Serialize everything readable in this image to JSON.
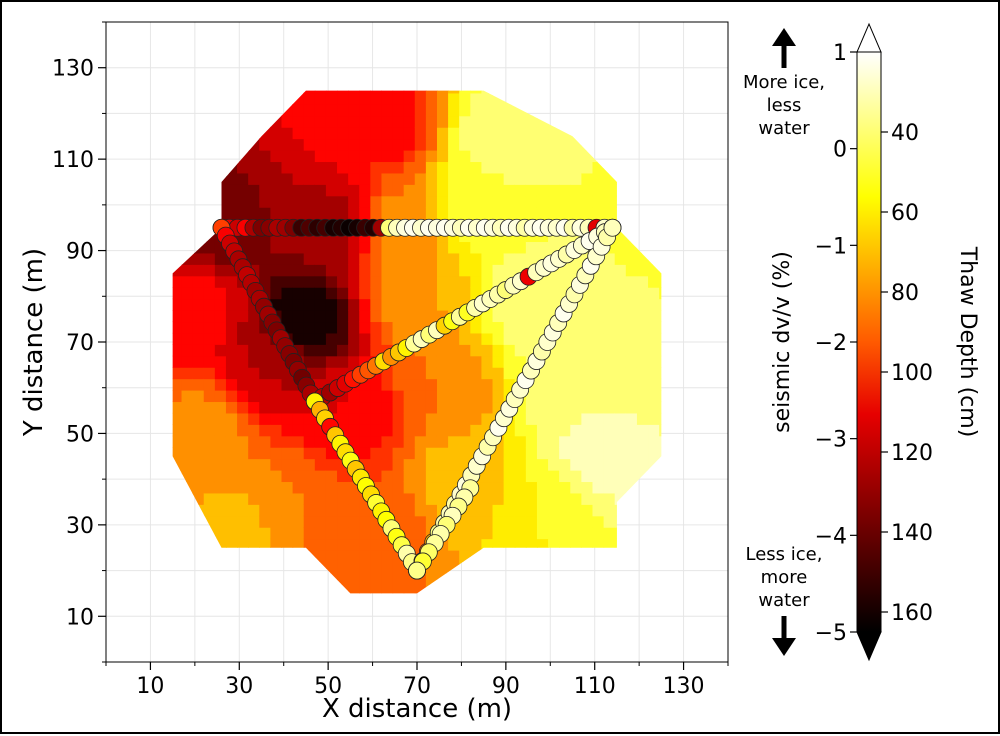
{
  "chart_data": {
    "type": "scatter",
    "title": "",
    "xlabel": "X distance (m)",
    "ylabel": "Y distance (m)",
    "xlim": [
      0,
      140
    ],
    "ylim": [
      0,
      140
    ],
    "xticks": [
      "10",
      "30",
      "50",
      "70",
      "90",
      "110",
      "130"
    ],
    "yticks": [
      "10",
      "30",
      "50",
      "70",
      "90",
      "110",
      "130"
    ],
    "grid": true,
    "background_contour": {
      "quantity": "Thaw Depth (cm)",
      "colormap": "hot",
      "hull": [
        [
          26,
          105
        ],
        [
          35,
          115
        ],
        [
          45,
          125
        ],
        [
          85,
          125
        ],
        [
          105,
          115
        ],
        [
          115,
          105
        ],
        [
          115,
          95
        ],
        [
          125,
          85
        ],
        [
          125,
          45
        ],
        [
          115,
          35
        ],
        [
          115,
          25
        ],
        [
          85,
          25
        ],
        [
          70,
          15
        ],
        [
          55,
          15
        ],
        [
          45,
          25
        ],
        [
          26,
          25
        ],
        [
          15,
          45
        ],
        [
          15,
          85
        ],
        [
          26,
          95
        ]
      ],
      "centers": [
        {
          "x": 45,
          "y": 75,
          "thaw": 165
        },
        {
          "x": 25,
          "y": 95,
          "thaw": 140
        },
        {
          "x": 52,
          "y": 95,
          "thaw": 130
        },
        {
          "x": 38,
          "y": 65,
          "thaw": 125
        },
        {
          "x": 62,
          "y": 118,
          "thaw": 110
        },
        {
          "x": 20,
          "y": 78,
          "thaw": 110
        },
        {
          "x": 55,
          "y": 55,
          "thaw": 115
        },
        {
          "x": 60,
          "y": 30,
          "thaw": 95
        },
        {
          "x": 75,
          "y": 60,
          "thaw": 85
        },
        {
          "x": 22,
          "y": 50,
          "thaw": 80
        },
        {
          "x": 80,
          "y": 40,
          "thaw": 70
        },
        {
          "x": 85,
          "y": 100,
          "thaw": 50
        },
        {
          "x": 90,
          "y": 115,
          "thaw": 35
        },
        {
          "x": 95,
          "y": 80,
          "thaw": 38
        },
        {
          "x": 105,
          "y": 60,
          "thaw": 36
        },
        {
          "x": 112,
          "y": 45,
          "thaw": 30
        },
        {
          "x": 120,
          "y": 70,
          "thaw": 45
        },
        {
          "x": 100,
          "y": 30,
          "thaw": 55
        },
        {
          "x": 40,
          "y": 35,
          "thaw": 85
        },
        {
          "x": 30,
          "y": 30,
          "thaw": 70
        },
        {
          "x": 65,
          "y": 95,
          "thaw": 80
        },
        {
          "x": 70,
          "y": 80,
          "thaw": 75
        }
      ]
    },
    "series": [
      {
        "path": "top",
        "from": [
          26,
          95
        ],
        "to": [
          114,
          95
        ],
        "dvv": [
          -3.3,
          -3.0,
          -3.2,
          -2.8,
          -3.5,
          -3.9,
          -3.8,
          -3.5,
          -3.6,
          -3.9,
          -4.5,
          -4.3,
          -4.6,
          -4.4,
          -4.8,
          -4.7,
          -4.9,
          -4.8,
          -4.5,
          -4.7,
          -3.6,
          0.2,
          0.6,
          0.8,
          0.9,
          0.7,
          0.9,
          0.8,
          0.9,
          0.8,
          0.6,
          0.9,
          0.7,
          0.9,
          0.8,
          0.6,
          0.9,
          0.8,
          0.5,
          0.8,
          0.9,
          0.8,
          0.7,
          0.9,
          0.5,
          0.8,
          0.6,
          -3.0,
          0.7,
          0.9
        ]
      },
      {
        "path": "west",
        "from": [
          26,
          95
        ],
        "to": [
          47,
          57
        ],
        "dvv": [
          -2.2,
          -2.8,
          -3.2,
          -3.3,
          -3.5,
          -3.5,
          -3.3,
          -3.4,
          -3.6,
          -3.5,
          -3.7,
          -3.6,
          -3.8,
          -3.9,
          -3.6,
          -3.7,
          -3.8,
          -3.9,
          -3.7,
          -4.0,
          -3.8,
          -3.5,
          -3.3
        ]
      },
      {
        "path": "diagonal",
        "from": [
          47,
          57
        ],
        "to": [
          114,
          95
        ],
        "dvv": [
          -3.5,
          -3.4,
          -3.6,
          -3.2,
          -3.0,
          -2.6,
          -2.2,
          -2.0,
          -1.7,
          -0.8,
          -1.5,
          -1.0,
          -0.6,
          0.4,
          0.6,
          0.2,
          0.6,
          -0.9,
          -0.4,
          0.4,
          -0.3,
          0.5,
          0.7,
          0.6,
          0.5,
          0.2,
          0.6,
          0.7,
          -2.9,
          0.6,
          0.7,
          0.8,
          0.7,
          0.5,
          0.8,
          0.7,
          0.9,
          0.8,
          0.6,
          0.7
        ]
      },
      {
        "path": "southwest",
        "from": [
          47,
          57
        ],
        "to": [
          70,
          20
        ],
        "dvv": [
          -0.6,
          -1.2,
          -0.9,
          -2.7,
          -1.0,
          -0.6,
          -0.8,
          -0.4,
          -1.0,
          -0.7,
          -0.5,
          -0.8,
          -0.2,
          -0.6,
          -0.5,
          0.2,
          -0.4,
          -0.1,
          0.5,
          0.3,
          -3.1
        ]
      },
      {
        "path": "southeast",
        "from": [
          70,
          20
        ],
        "to": [
          114,
          95
        ],
        "dvv": [
          -3.5,
          -2.8,
          -1.8,
          -1.2,
          0.3,
          0.5,
          0.6,
          0.5,
          0.7,
          0.8,
          0.6,
          0.7,
          0.8,
          0.5,
          0.6,
          0.9,
          0.7,
          0.8,
          0.6,
          0.7,
          0.9,
          0.6,
          0.8,
          0.5,
          0.7,
          0.8,
          0.6,
          0.9,
          0.7,
          0.5,
          0.8,
          0.6,
          0.9,
          0.7,
          0.8,
          0.5,
          0.6
        ]
      },
      {
        "path": "spur",
        "from": [
          82,
          38
        ],
        "to": [
          70,
          20
        ],
        "dvv": [
          0.4,
          0.5,
          0.3,
          0.6,
          0.2,
          0.5,
          0.4,
          0.1,
          -0.2,
          0.3
        ]
      }
    ],
    "colorbar": {
      "left_label": "seismic dv/v (%)",
      "right_label": "Thaw Depth (cm)",
      "left_range": [
        -5,
        1
      ],
      "left_ticks": [
        "1",
        "0",
        "−1",
        "−2",
        "−3",
        "−4",
        "−5"
      ],
      "right_range": [
        165,
        20
      ],
      "right_ticks": [
        "40",
        "60",
        "80",
        "100",
        "120",
        "140",
        "160"
      ],
      "extend": "both"
    },
    "annotations": {
      "top_lines": [
        "More ice,",
        "less",
        "water"
      ],
      "bottom_lines": [
        "Less ice,",
        "more",
        "water"
      ]
    }
  }
}
